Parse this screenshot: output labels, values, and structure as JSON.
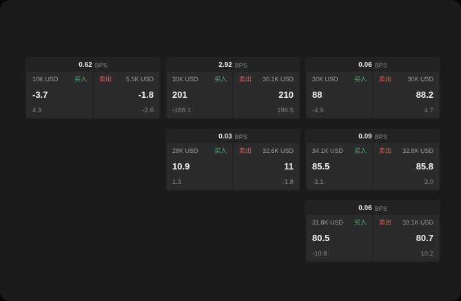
{
  "colors": {
    "buy_green": "#3dbb72",
    "sell_red": "#e05a52",
    "background": "#1b1b1d",
    "card": "#232325",
    "panel": "#2b2b2d"
  },
  "cards": [
    {
      "bps_value": "0.62",
      "bps_unit": "BPS",
      "buy": {
        "amount": "10K USD",
        "side": "买入",
        "price": "-3.7",
        "delta": "4.3"
      },
      "sell": {
        "side": "卖出",
        "amount": "5.5K USD",
        "price": "-1.8",
        "delta": "-2.6"
      }
    },
    {
      "bps_value": "2.92",
      "bps_unit": "BPS",
      "buy": {
        "amount": "30K USD",
        "side": "买入",
        "price": "201",
        "delta": "-188.1"
      },
      "sell": {
        "side": "卖出",
        "amount": "30.1K USD",
        "price": "210",
        "delta": "196.5"
      }
    },
    {
      "bps_value": "0.06",
      "bps_unit": "BPS",
      "buy": {
        "amount": "30K USD",
        "side": "买入",
        "price": "88",
        "delta": "-4.9"
      },
      "sell": {
        "side": "卖出",
        "amount": "30K USD",
        "price": "88.2",
        "delta": "4.7"
      }
    },
    {
      "bps_value": "0.03",
      "bps_unit": "BPS",
      "buy": {
        "amount": "28K USD",
        "side": "买入",
        "price": "10.9",
        "delta": "1.3"
      },
      "sell": {
        "side": "卖出",
        "amount": "32.6K USD",
        "price": "11",
        "delta": "-1.8"
      }
    },
    {
      "bps_value": "0.09",
      "bps_unit": "BPS",
      "buy": {
        "amount": "34.1K USD",
        "side": "买入",
        "price": "85.5",
        "delta": "-3.1"
      },
      "sell": {
        "side": "卖出",
        "amount": "32.8K USD",
        "price": "85.8",
        "delta": "3.0"
      }
    },
    {
      "bps_value": "0.06",
      "bps_unit": "BPS",
      "buy": {
        "amount": "31.8K USD",
        "side": "买入",
        "price": "80.5",
        "delta": "-10.8"
      },
      "sell": {
        "side": "卖出",
        "amount": "39.1K USD",
        "price": "80.7",
        "delta": "10.2"
      }
    }
  ]
}
